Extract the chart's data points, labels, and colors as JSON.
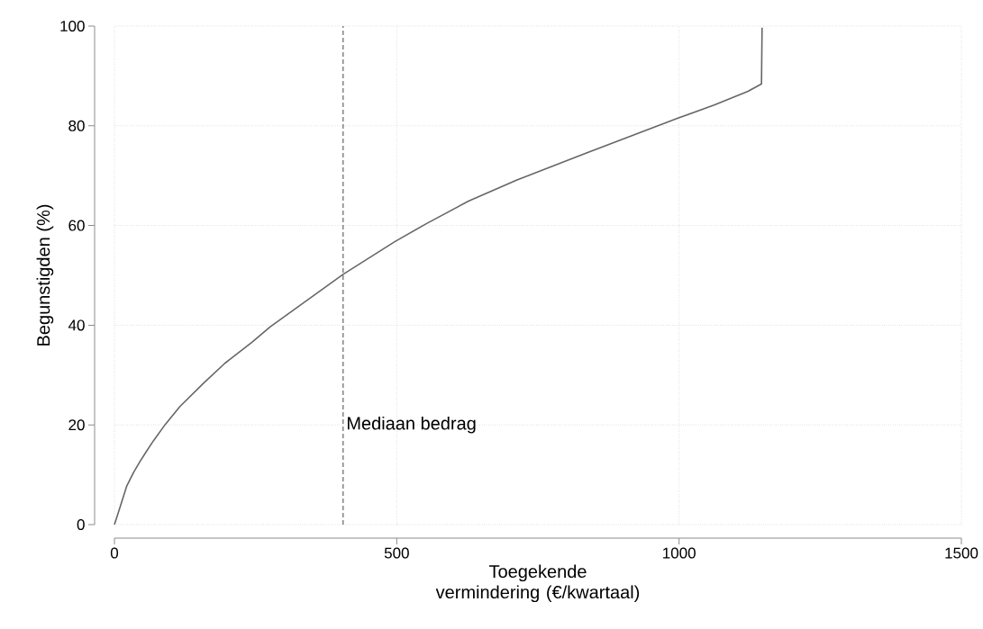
{
  "chart_data": {
    "type": "line",
    "xlabel": "Toegekende vermindering (€/kwartaal)",
    "ylabel": "Begunstigden (%)",
    "x": [
      0,
      10,
      22,
      34,
      45,
      55,
      69,
      90,
      116,
      159,
      196,
      244,
      276,
      405,
      497,
      553,
      627,
      712,
      835,
      997,
      1063,
      1122,
      1146,
      1147
    ],
    "values": [
      0,
      3.5,
      7.8,
      10.5,
      12.6,
      14.4,
      16.8,
      20.1,
      23.7,
      28.5,
      32.4,
      36.6,
      39.7,
      50.2,
      56.8,
      60.4,
      64.9,
      69.1,
      74.5,
      81.5,
      84.2,
      86.9,
      88.4,
      99.7
    ],
    "color": "#666666",
    "xlim": [
      0,
      1500
    ],
    "ylim": [
      0,
      100
    ],
    "xticks": [
      0,
      500,
      1000,
      1500
    ],
    "yticks": [
      0,
      20,
      40,
      60,
      80,
      100
    ],
    "grid": true,
    "ref_lines": [
      {
        "axis": "x",
        "value": 405,
        "label": "Mediaan bedrag",
        "color": "#666666",
        "line_style": "dashed"
      }
    ]
  }
}
